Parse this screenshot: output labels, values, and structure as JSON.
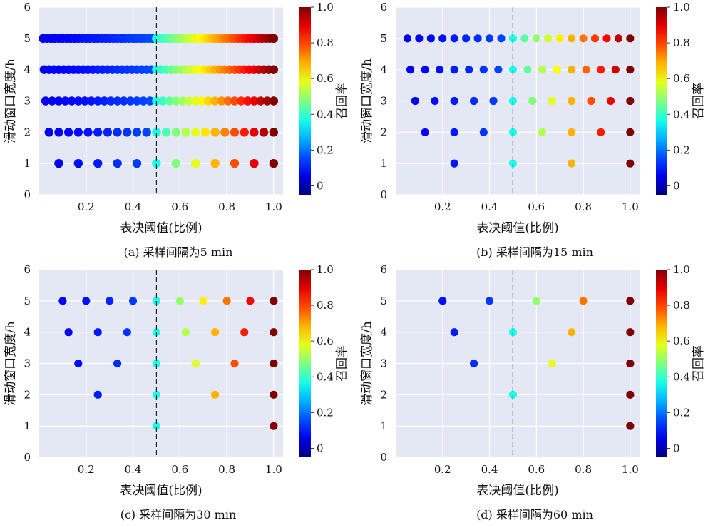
{
  "chart_data": [
    {
      "type": "scatter",
      "caption": "(a) 采样间隔为5 min",
      "xlabel": "表决阈值(比例)",
      "ylabel": "滑动窗口宽度/h",
      "colorbar_label": "召回率",
      "xlim": [
        0,
        1.04
      ],
      "ylim": [
        0,
        6
      ],
      "xticks": [
        "0.2",
        "0.4",
        "0.6",
        "0.8",
        "1.0"
      ],
      "yticks": [
        "0",
        "1",
        "2",
        "3",
        "4",
        "5",
        "6"
      ],
      "cbar_ticks": [
        "0",
        "0.2",
        "0.4",
        "0.6",
        "0.8",
        "1.0"
      ],
      "threshold_line": 0.5,
      "grid": true,
      "rows": [
        {
          "y": 5,
          "n": 60
        },
        {
          "y": 4,
          "n": 48
        },
        {
          "y": 3,
          "n": 36
        },
        {
          "y": 2,
          "n": 24
        },
        {
          "y": 1,
          "n": 12
        }
      ]
    },
    {
      "type": "scatter",
      "caption": "(b) 采样间隔为15 min",
      "xlabel": "表决阈值(比例)",
      "ylabel": "滑动窗口宽度/h",
      "colorbar_label": "召回率",
      "xlim": [
        0,
        1.04
      ],
      "ylim": [
        0,
        6
      ],
      "xticks": [
        "0.2",
        "0.4",
        "0.6",
        "0.8",
        "1.0"
      ],
      "yticks": [
        "0",
        "1",
        "2",
        "3",
        "4",
        "5",
        "6"
      ],
      "cbar_ticks": [
        "0",
        "0.2",
        "0.4",
        "0.6",
        "0.8",
        "1.0"
      ],
      "threshold_line": 0.5,
      "grid": true,
      "rows": [
        {
          "y": 5,
          "n": 20
        },
        {
          "y": 4,
          "n": 16
        },
        {
          "y": 3,
          "n": 12
        },
        {
          "y": 2,
          "n": 8
        },
        {
          "y": 1,
          "n": 4
        }
      ]
    },
    {
      "type": "scatter",
      "caption": "(c) 采样间隔为30 min",
      "xlabel": "表决阈值(比例)",
      "ylabel": "滑动窗口宽度/h",
      "colorbar_label": "召回率",
      "xlim": [
        0,
        1.04
      ],
      "ylim": [
        0,
        6
      ],
      "xticks": [
        "0.2",
        "0.4",
        "0.6",
        "0.8",
        "1.0"
      ],
      "yticks": [
        "0",
        "1",
        "2",
        "3",
        "4",
        "5",
        "6"
      ],
      "cbar_ticks": [
        "0",
        "0.2",
        "0.4",
        "0.6",
        "0.8",
        "1.0"
      ],
      "threshold_line": 0.5,
      "grid": true,
      "rows": [
        {
          "y": 5,
          "n": 10
        },
        {
          "y": 4,
          "n": 8
        },
        {
          "y": 3,
          "n": 6
        },
        {
          "y": 2,
          "n": 4
        },
        {
          "y": 1,
          "n": 2
        }
      ]
    },
    {
      "type": "scatter",
      "caption": "(d) 采样间隔为60 min",
      "xlabel": "表决阈值(比例)",
      "ylabel": "滑动窗口宽度/h",
      "colorbar_label": "召回率",
      "xlim": [
        0,
        1.04
      ],
      "ylim": [
        0,
        6
      ],
      "xticks": [
        "0.2",
        "0.4",
        "0.6",
        "0.8",
        "1.0"
      ],
      "yticks": [
        "0",
        "1",
        "2",
        "3",
        "4",
        "5",
        "6"
      ],
      "cbar_ticks": [
        "0",
        "0.2",
        "0.4",
        "0.6",
        "0.8",
        "1.0"
      ],
      "threshold_line": 0.5,
      "grid": true,
      "rows": [
        {
          "y": 5,
          "n": 5
        },
        {
          "y": 4,
          "n": 4
        },
        {
          "y": 3,
          "n": 3
        },
        {
          "y": 2,
          "n": 2
        },
        {
          "y": 1,
          "n": 1
        }
      ]
    }
  ],
  "colors": {
    "plot_bg": "#e4e8f5",
    "grid": "#ffffff",
    "threshold_line": "#222222"
  }
}
